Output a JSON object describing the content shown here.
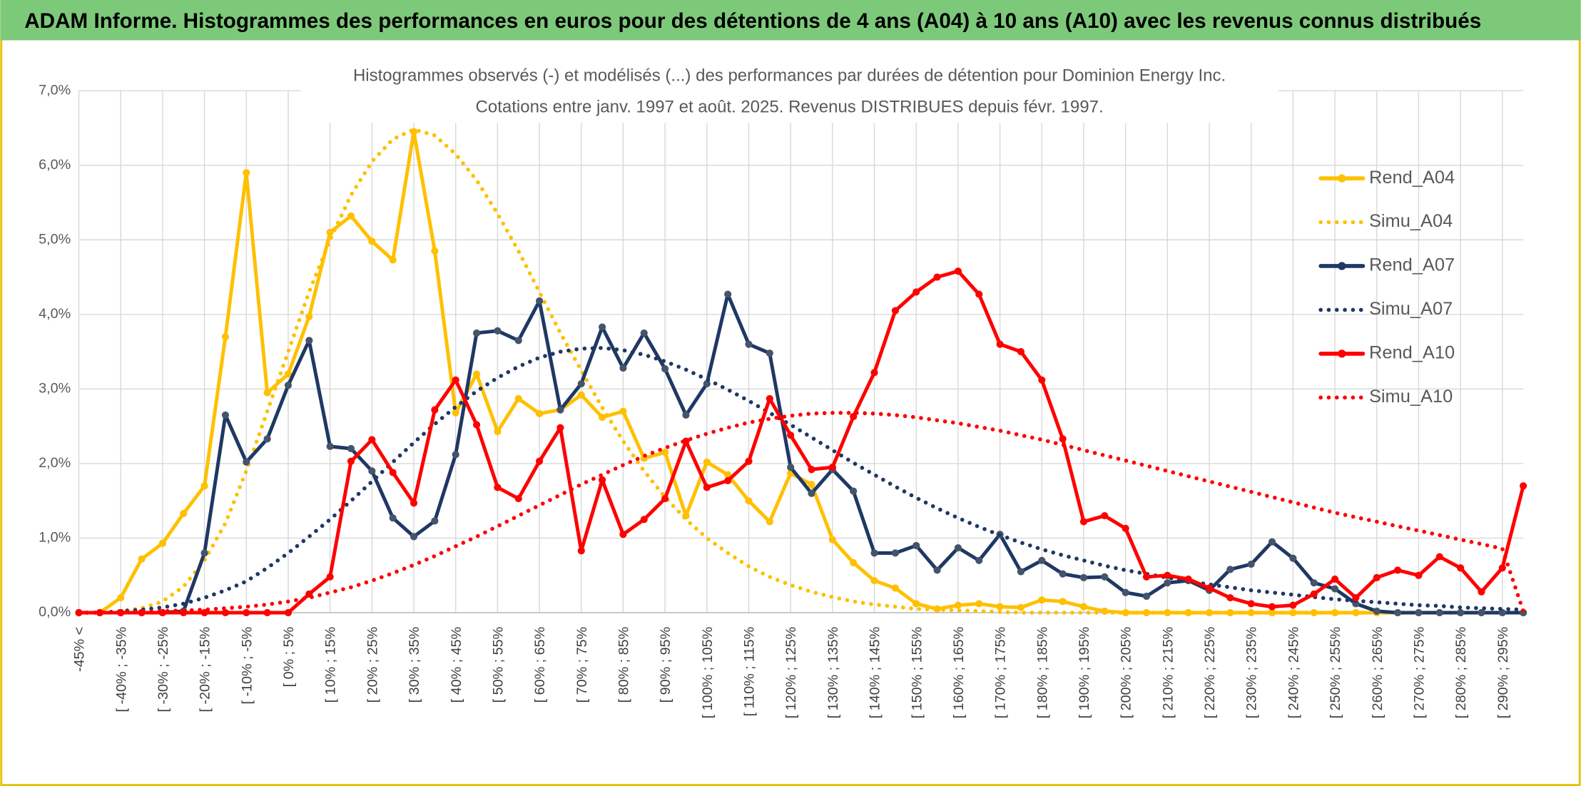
{
  "chart_data": {
    "type": "line",
    "header": "ADAM Informe. Histogrammes des performances en euros pour des détentions de 4 ans (A04) à 10 ans (A10) avec les revenus connus distribués",
    "title": "Histogrammes observés (-) et modélisés (...) des performances par durées de détention pour Dominion Energy Inc.",
    "subtitle": "Cotations entre janv. 1997 et août. 2025. Revenus DISTRIBUES depuis févr. 1997.",
    "categories": [
      "-45% <",
      null,
      "[ -40% ; -35%",
      null,
      "[ -30% ; -25%",
      null,
      "[ -20% ; -15%",
      null,
      "[ -10% ; -5%",
      null,
      "[ 0% ; 5%",
      null,
      "[ 10% ; 15%",
      null,
      "[ 20% ; 25%",
      null,
      "[ 30% ; 35%",
      null,
      "[ 40% ; 45%",
      null,
      "[ 50% ; 55%",
      null,
      "[ 60% ; 65%",
      null,
      "[ 70% ; 75%",
      null,
      "[ 80% ; 85%",
      null,
      "[ 90% ; 95%",
      null,
      "[ 100% ; 105%",
      null,
      "[ 110% ; 115%",
      null,
      "[ 120% ; 125%",
      null,
      "[ 130% ; 135%",
      null,
      "[ 140% ; 145%",
      null,
      "[ 150% ; 155%",
      null,
      "[ 160% ; 165%",
      null,
      "[ 170% ; 175%",
      null,
      "[ 180% ; 185%",
      null,
      "[ 190% ; 195%",
      null,
      "[ 200% ; 205%",
      null,
      "[ 210% ; 215%",
      null,
      "[ 220% ; 225%",
      null,
      "[ 230% ; 235%",
      null,
      "[ 240% ; 245%",
      null,
      "[ 250% ; 255%",
      null,
      "[ 260% ; 265%",
      null,
      "[ 270% ; 275%",
      null,
      "[ 280% ; 285%",
      null,
      "[ 290% ; 295%",
      null
    ],
    "series": [
      {
        "name": "Rend_A04",
        "color": "#FFC000",
        "style": "solid",
        "values": [
          0,
          0,
          0.2,
          0.72,
          0.93,
          1.33,
          1.7,
          3.7,
          5.9,
          2.95,
          3.2,
          3.97,
          5.1,
          5.32,
          4.98,
          4.73,
          6.45,
          4.85,
          2.68,
          3.2,
          2.43,
          2.87,
          2.67,
          2.72,
          2.92,
          2.62,
          2.7,
          2.07,
          2.15,
          1.3,
          2.02,
          1.85,
          1.5,
          1.22,
          1.87,
          1.72,
          0.98,
          0.67,
          0.43,
          0.33,
          0.12,
          0.05,
          0.1,
          0.12,
          0.08,
          0.07,
          0.17,
          0.15,
          0.08,
          0.02,
          0,
          0,
          0,
          0,
          0,
          0,
          0,
          0,
          0,
          0,
          0,
          0,
          0,
          0,
          0,
          0,
          0,
          0,
          0,
          0
        ]
      },
      {
        "name": "Simu_A04",
        "color": "#FFC000",
        "style": "dotted",
        "values": [
          0,
          0,
          0.02,
          0.06,
          0.15,
          0.35,
          0.7,
          1.2,
          1.9,
          2.7,
          3.5,
          4.3,
          5.0,
          5.6,
          6.05,
          6.35,
          6.48,
          6.4,
          6.15,
          5.8,
          5.35,
          4.85,
          4.3,
          3.75,
          3.25,
          2.75,
          2.3,
          1.9,
          1.55,
          1.25,
          1.0,
          0.8,
          0.62,
          0.48,
          0.37,
          0.28,
          0.21,
          0.15,
          0.11,
          0.08,
          0.05,
          0.04,
          0.03,
          0.02,
          0.01,
          0,
          0,
          0,
          0,
          0,
          0,
          0,
          0,
          0,
          0,
          0,
          0,
          0,
          0,
          0,
          0,
          0,
          0,
          0,
          0,
          0,
          0,
          0,
          0,
          0
        ]
      },
      {
        "name": "Rend_A07",
        "color": "#1F3864",
        "style": "solid",
        "values": [
          0,
          0,
          0,
          0,
          0,
          0.02,
          0.8,
          2.65,
          2.02,
          2.33,
          3.05,
          3.65,
          2.23,
          2.2,
          1.9,
          1.27,
          1.02,
          1.23,
          2.12,
          3.75,
          3.78,
          3.65,
          4.18,
          2.72,
          3.07,
          3.83,
          3.28,
          3.75,
          3.27,
          2.65,
          3.07,
          4.27,
          3.6,
          3.48,
          1.95,
          1.6,
          1.92,
          1.63,
          0.8,
          0.8,
          0.9,
          0.57,
          0.87,
          0.7,
          1.05,
          0.55,
          0.7,
          0.52,
          0.47,
          0.48,
          0.27,
          0.22,
          0.4,
          0.43,
          0.3,
          0.58,
          0.65,
          0.95,
          0.73,
          0.4,
          0.32,
          0.12,
          0.02,
          0,
          0,
          0,
          0,
          0,
          0,
          0
        ]
      },
      {
        "name": "Simu_A07",
        "color": "#1F3864",
        "style": "dotted",
        "values": [
          0,
          0,
          0.02,
          0.04,
          0.07,
          0.12,
          0.2,
          0.3,
          0.42,
          0.6,
          0.8,
          1.02,
          1.25,
          1.5,
          1.76,
          2.02,
          2.28,
          2.53,
          2.76,
          2.97,
          3.15,
          3.3,
          3.42,
          3.5,
          3.54,
          3.55,
          3.52,
          3.46,
          3.37,
          3.26,
          3.13,
          2.99,
          2.84,
          2.68,
          2.52,
          2.35,
          2.18,
          2.01,
          1.85,
          1.69,
          1.54,
          1.4,
          1.27,
          1.15,
          1.04,
          0.94,
          0.85,
          0.77,
          0.7,
          0.63,
          0.57,
          0.52,
          0.47,
          0.42,
          0.38,
          0.34,
          0.3,
          0.27,
          0.24,
          0.21,
          0.18,
          0.16,
          0.14,
          0.12,
          0.1,
          0.09,
          0.07,
          0.06,
          0.05,
          0.04
        ]
      },
      {
        "name": "Rend_A10",
        "color": "#FF0000",
        "style": "solid",
        "values": [
          0,
          0,
          0,
          0,
          0,
          0,
          0,
          0,
          0,
          0,
          0,
          0.25,
          0.48,
          2.03,
          2.32,
          1.88,
          1.47,
          2.72,
          3.12,
          2.52,
          1.68,
          1.53,
          2.03,
          2.48,
          0.83,
          1.78,
          1.05,
          1.25,
          1.53,
          2.3,
          1.68,
          1.77,
          2.03,
          2.87,
          2.38,
          1.92,
          1.95,
          2.63,
          3.22,
          4.05,
          4.3,
          4.5,
          4.58,
          4.27,
          3.6,
          3.5,
          3.12,
          2.33,
          1.22,
          1.3,
          1.13,
          0.48,
          0.5,
          0.45,
          0.33,
          0.2,
          0.12,
          0.08,
          0.1,
          0.25,
          0.45,
          0.2,
          0.47,
          0.57,
          0.5,
          0.75,
          0.6,
          0.28,
          0.6,
          1.7
        ]
      },
      {
        "name": "Simu_A10",
        "color": "#FF0000",
        "style": "dotted",
        "values": [
          0,
          0,
          0.01,
          0.01,
          0.02,
          0.03,
          0.04,
          0.06,
          0.08,
          0.11,
          0.15,
          0.2,
          0.27,
          0.34,
          0.43,
          0.53,
          0.64,
          0.76,
          0.89,
          1.02,
          1.16,
          1.3,
          1.44,
          1.58,
          1.72,
          1.85,
          1.98,
          2.1,
          2.21,
          2.31,
          2.4,
          2.48,
          2.55,
          2.6,
          2.64,
          2.67,
          2.68,
          2.68,
          2.67,
          2.65,
          2.62,
          2.58,
          2.54,
          2.49,
          2.44,
          2.38,
          2.32,
          2.25,
          2.18,
          2.11,
          2.04,
          1.97,
          1.9,
          1.83,
          1.76,
          1.69,
          1.62,
          1.55,
          1.48,
          1.41,
          1.34,
          1.28,
          1.22,
          1.16,
          1.1,
          1.04,
          0.98,
          0.92,
          0.86,
          0.02
        ]
      }
    ],
    "ylim": [
      0,
      7
    ],
    "yticks": [
      {
        "value": 0,
        "label": "0,0%"
      },
      {
        "value": 1,
        "label": "1,0%"
      },
      {
        "value": 2,
        "label": "2,0%"
      },
      {
        "value": 3,
        "label": "3,0%"
      },
      {
        "value": 4,
        "label": "4,0%"
      },
      {
        "value": 5,
        "label": "5,0%"
      },
      {
        "value": 6,
        "label": "6,0%"
      },
      {
        "value": 7,
        "label": "7,0%"
      }
    ],
    "grid": true,
    "legend": "right"
  }
}
